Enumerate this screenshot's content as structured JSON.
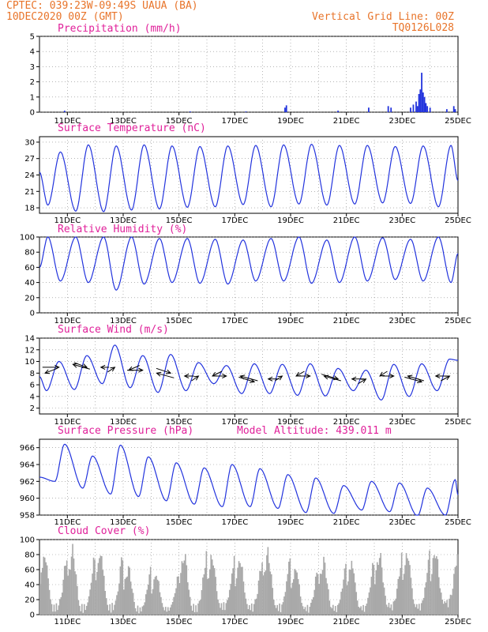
{
  "header": {
    "line1_left": "CPTEC:   039:23W-09:49S   UAUA (BA)",
    "line2_left": "10DEC2020 00Z (GMT)",
    "line2_right": "Vertical Grid Line: 00Z",
    "line3_right": "TQ0126L028"
  },
  "colors": {
    "header": "#e8742a",
    "title": "#e0209a",
    "line": "#2233dd",
    "cloud": "#a9a9a9",
    "arrow": "#000000"
  },
  "x_ticks": [
    "11DEC",
    "13DEC",
    "15DEC",
    "17DEC",
    "19DEC",
    "21DEC",
    "23DEC",
    "25DEC"
  ],
  "chart_data": [
    {
      "type": "bar",
      "title": "Precipitation (mm/h)",
      "ylim": [
        0,
        5
      ],
      "yticks": [
        "0",
        "1",
        "2",
        "3",
        "4",
        "5"
      ],
      "x": [
        "10DEC 00Z",
        "25DEC 00Z"
      ],
      "events": [
        {
          "day": 0.9,
          "value": 0.1
        },
        {
          "day": 5.4,
          "value": 0.05
        },
        {
          "day": 7.4,
          "value": 0.05
        },
        {
          "day": 8.8,
          "value": 0.3
        },
        {
          "day": 8.85,
          "value": 0.45
        },
        {
          "day": 10.7,
          "value": 0.1
        },
        {
          "day": 11.8,
          "value": 0.3
        },
        {
          "day": 12.5,
          "value": 0.4
        },
        {
          "day": 12.6,
          "value": 0.3
        },
        {
          "day": 13.3,
          "value": 0.3
        },
        {
          "day": 13.4,
          "value": 0.5
        },
        {
          "day": 13.5,
          "value": 0.7
        },
        {
          "day": 13.55,
          "value": 0.4
        },
        {
          "day": 13.6,
          "value": 1.2
        },
        {
          "day": 13.65,
          "value": 1.5
        },
        {
          "day": 13.7,
          "value": 2.6
        },
        {
          "day": 13.75,
          "value": 1.3
        },
        {
          "day": 13.8,
          "value": 1.0
        },
        {
          "day": 13.85,
          "value": 0.6
        },
        {
          "day": 13.9,
          "value": 0.4
        },
        {
          "day": 14.0,
          "value": 0.3
        },
        {
          "day": 14.6,
          "value": 0.2
        },
        {
          "day": 14.85,
          "value": 0.4
        },
        {
          "day": 14.9,
          "value": 0.2
        }
      ]
    },
    {
      "type": "line",
      "title": "Surface Temperature (nC)",
      "ylim": [
        17,
        31
      ],
      "yticks": [
        "18",
        "21",
        "24",
        "27",
        "30"
      ],
      "daily_max": [
        28.2,
        29.5,
        29.3,
        29.5,
        29.3,
        29.2,
        29.3,
        29.4,
        29.5,
        29.6,
        29.4,
        29.4,
        29.2,
        29.3,
        29.4
      ],
      "daily_min": [
        18.5,
        17.4,
        17.3,
        17.6,
        17.8,
        18.1,
        18.2,
        18.6,
        18.2,
        18.7,
        18.5,
        18.7,
        18.9,
        18.8,
        18.2
      ],
      "start_value": 24.5,
      "end_value": 23.0
    },
    {
      "type": "line",
      "title": "Relative Humidity (%)",
      "ylim": [
        0,
        100
      ],
      "yticks": [
        "0",
        "20",
        "40",
        "60",
        "80",
        "100"
      ],
      "daily_max": [
        100,
        100,
        100,
        100,
        98,
        98,
        97,
        96,
        98,
        100,
        96,
        100,
        99,
        97,
        100
      ],
      "daily_min": [
        42,
        40,
        30,
        38,
        40,
        39,
        38,
        42,
        42,
        39,
        40,
        42,
        44,
        42,
        40
      ],
      "start_value": 60,
      "end_value": 78
    },
    {
      "type": "line",
      "title": "Surface Wind (m/s)",
      "ylim": [
        1,
        14
      ],
      "yticks": [
        "2",
        "4",
        "6",
        "8",
        "10",
        "12",
        "14"
      ],
      "daily_max": [
        10.0,
        11.0,
        12.8,
        11.0,
        11.2,
        9.8,
        9.3,
        9.6,
        9.5,
        9.6,
        8.8,
        8.5,
        9.5,
        9.6,
        10.4
      ],
      "daily_min": [
        5.0,
        5.2,
        6.2,
        5.5,
        4.7,
        5.0,
        6.2,
        4.5,
        4.5,
        4.2,
        4.1,
        5.0,
        3.4,
        4.0,
        5.0
      ],
      "start_value": 7.4,
      "end_value": 10.2,
      "arrow_y": [
        8,
        9,
        9.5,
        9,
        9,
        9,
        8.5,
        8.5,
        8,
        8,
        7.5,
        7.5,
        7.5,
        7.5,
        7.5,
        6.5,
        7,
        7.5,
        7.5,
        7.5,
        7.5,
        7,
        7,
        7,
        7.5,
        7.5,
        7.5,
        6.5,
        7.5,
        7.5
      ]
    },
    {
      "type": "line",
      "title": "Surface Pressure (hPa)",
      "annotation": "Model Altitude: 439.011 m",
      "ylim": [
        958,
        967
      ],
      "yticks": [
        "958",
        "960",
        "962",
        "964",
        "966"
      ],
      "daily_max": [
        966.4,
        965.0,
        966.3,
        964.9,
        964.2,
        963.6,
        964.0,
        963.5,
        962.8,
        962.4,
        961.5,
        962.0,
        961.8,
        961.2,
        962.2
      ],
      "daily_min": [
        962.0,
        961.2,
        960.5,
        960.2,
        959.7,
        959.3,
        959.0,
        959.0,
        958.8,
        958.3,
        958.2,
        958.6,
        958.4,
        957.9,
        958.0
      ],
      "start_value": 962.5,
      "end_value": 960.4
    },
    {
      "type": "bar",
      "title": "Cloud Cover (%)",
      "ylim": [
        0,
        100
      ],
      "yticks": [
        "0",
        "20",
        "40",
        "60",
        "80",
        "100"
      ],
      "daily_peak": [
        93,
        95,
        96,
        70,
        62,
        92,
        88,
        85,
        93,
        72,
        80,
        82,
        90,
        95,
        95
      ],
      "daily_trough": [
        3,
        2,
        3,
        2,
        4,
        2,
        6,
        4,
        3,
        3,
        3,
        3,
        5,
        4,
        10
      ]
    }
  ]
}
